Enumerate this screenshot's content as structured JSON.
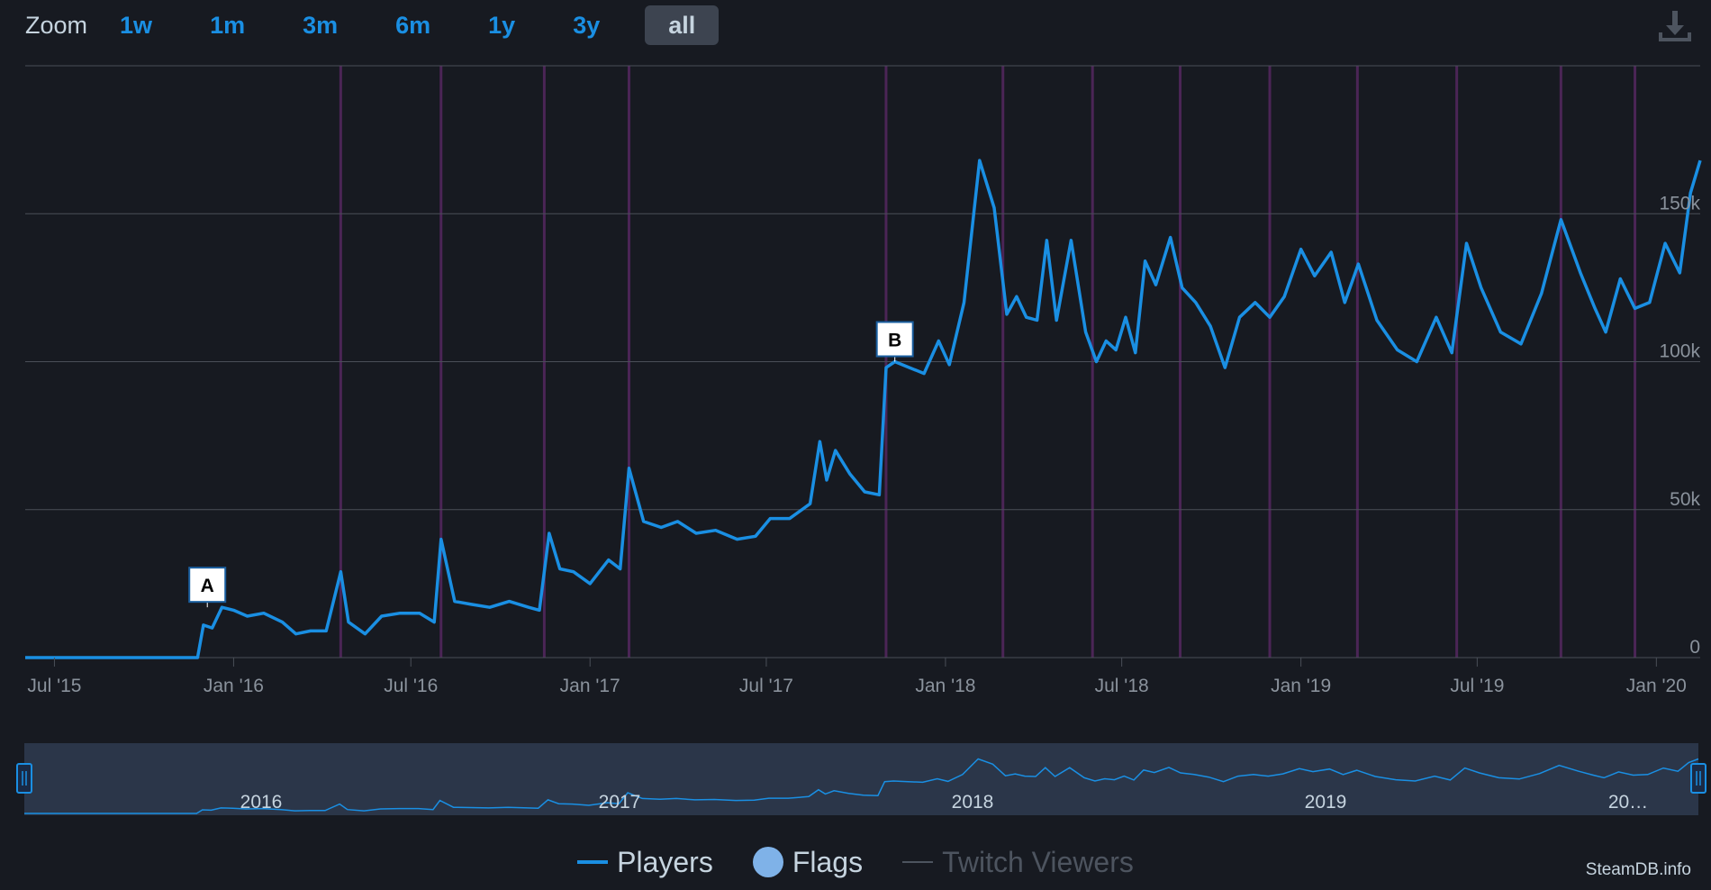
{
  "zoom": {
    "label": "Zoom",
    "buttons": [
      "1w",
      "1m",
      "3m",
      "6m",
      "1y",
      "3y",
      "all"
    ],
    "active": "all"
  },
  "legend": {
    "players": "Players",
    "flags": "Flags",
    "twitch": "Twitch Viewers"
  },
  "credit": "SteamDB.info",
  "colors": {
    "background": "#171a21",
    "series": "#1a8fe3",
    "event_lines": "#4b2556",
    "grid": "#4a4f58",
    "text": "#c6d4df"
  },
  "icons": {
    "download": "download-icon"
  },
  "chart_data": {
    "type": "line",
    "xlabel": "",
    "ylabel": "",
    "xlim": [
      "2015-06-01",
      "2020-02-15"
    ],
    "ylim": [
      0,
      200000
    ],
    "y_ticks": [
      0,
      50000,
      100000,
      150000
    ],
    "y_tick_labels": [
      "0",
      "50k",
      "100k",
      "150k"
    ],
    "x_ticks": [
      "2015-07-01",
      "2016-01-01",
      "2016-07-01",
      "2017-01-01",
      "2017-07-01",
      "2018-01-01",
      "2018-07-01",
      "2019-01-01",
      "2019-07-01",
      "2020-01-01"
    ],
    "x_tick_labels": [
      "Jul '15",
      "Jan '16",
      "Jul '16",
      "Jan '17",
      "Jul '17",
      "Jan '18",
      "Jul '18",
      "Jan '19",
      "Jul '19",
      "Jan '20"
    ],
    "grid": true,
    "legend_position": "bottom-center",
    "event_lines": [
      "2016-04-20",
      "2016-08-01",
      "2016-11-15",
      "2017-02-10",
      "2017-11-01",
      "2018-03-01",
      "2018-06-01",
      "2018-08-30",
      "2018-11-30",
      "2019-02-28",
      "2019-06-10",
      "2019-09-25",
      "2019-12-10"
    ],
    "flags": [
      {
        "label": "A",
        "x": "2015-12-05",
        "y": 17000
      },
      {
        "label": "B",
        "x": "2017-11-10",
        "y": 100000
      }
    ],
    "series": [
      {
        "name": "Players",
        "x": [
          "2015-06-01",
          "2015-06-20",
          "2015-07-15",
          "2015-08-10",
          "2015-09-01",
          "2015-09-20",
          "2015-10-15",
          "2015-11-10",
          "2015-11-25",
          "2015-12-01",
          "2015-12-10",
          "2015-12-20",
          "2016-01-01",
          "2016-01-15",
          "2016-02-01",
          "2016-02-20",
          "2016-03-05",
          "2016-03-20",
          "2016-04-05",
          "2016-04-20",
          "2016-04-28",
          "2016-05-15",
          "2016-06-01",
          "2016-06-20",
          "2016-07-10",
          "2016-07-25",
          "2016-08-01",
          "2016-08-15",
          "2016-09-01",
          "2016-09-20",
          "2016-10-10",
          "2016-10-30",
          "2016-11-10",
          "2016-11-20",
          "2016-12-01",
          "2016-12-15",
          "2017-01-01",
          "2017-01-20",
          "2017-02-01",
          "2017-02-10",
          "2017-02-25",
          "2017-03-15",
          "2017-04-01",
          "2017-04-20",
          "2017-05-10",
          "2017-06-01",
          "2017-06-20",
          "2017-07-05",
          "2017-07-25",
          "2017-08-15",
          "2017-08-25",
          "2017-09-01",
          "2017-09-10",
          "2017-09-25",
          "2017-10-10",
          "2017-10-25",
          "2017-11-01",
          "2017-11-10",
          "2017-11-25",
          "2017-12-10",
          "2017-12-25",
          "2018-01-05",
          "2018-01-20",
          "2018-02-05",
          "2018-02-20",
          "2018-03-05",
          "2018-03-15",
          "2018-03-25",
          "2018-04-05",
          "2018-04-15",
          "2018-04-25",
          "2018-05-10",
          "2018-05-25",
          "2018-06-05",
          "2018-06-15",
          "2018-06-25",
          "2018-07-05",
          "2018-07-15",
          "2018-07-25",
          "2018-08-05",
          "2018-08-20",
          "2018-09-01",
          "2018-09-15",
          "2018-09-30",
          "2018-10-15",
          "2018-10-30",
          "2018-11-15",
          "2018-11-30",
          "2018-12-15",
          "2019-01-01",
          "2019-01-15",
          "2019-02-01",
          "2019-02-15",
          "2019-03-01",
          "2019-03-20",
          "2019-04-10",
          "2019-04-30",
          "2019-05-20",
          "2019-06-05",
          "2019-06-20",
          "2019-07-05",
          "2019-07-25",
          "2019-08-15",
          "2019-09-05",
          "2019-09-25",
          "2019-10-15",
          "2019-10-30",
          "2019-11-10",
          "2019-11-25",
          "2019-12-10",
          "2019-12-25",
          "2020-01-10",
          "2020-01-25",
          "2020-02-05",
          "2020-02-15"
        ],
        "values": [
          0,
          0,
          0,
          0,
          0,
          0,
          0,
          0,
          0,
          11000,
          10000,
          17000,
          16000,
          14000,
          15000,
          12000,
          8000,
          9000,
          9000,
          29000,
          12000,
          8000,
          14000,
          15000,
          15000,
          12000,
          40000,
          19000,
          18000,
          17000,
          19000,
          17000,
          16000,
          42000,
          30000,
          29000,
          25000,
          33000,
          30000,
          64000,
          46000,
          44000,
          46000,
          42000,
          43000,
          40000,
          41000,
          47000,
          47000,
          52000,
          73000,
          60000,
          70000,
          62000,
          56000,
          55000,
          98000,
          100000,
          98000,
          96000,
          107000,
          99000,
          120000,
          168000,
          152000,
          116000,
          122000,
          115000,
          114000,
          141000,
          114000,
          141000,
          110000,
          100000,
          107000,
          104000,
          115000,
          103000,
          134000,
          126000,
          142000,
          125000,
          120000,
          112000,
          98000,
          115000,
          120000,
          115000,
          122000,
          138000,
          129000,
          137000,
          120000,
          133000,
          114000,
          104000,
          100000,
          115000,
          103000,
          140000,
          125000,
          110000,
          106000,
          123000,
          148000,
          130000,
          118000,
          110000,
          128000,
          118000,
          120000,
          140000,
          130000,
          157000,
          168000
        ]
      }
    ],
    "navigator": {
      "tick_labels": [
        "2016",
        "2017",
        "2018",
        "2019",
        "20…"
      ]
    }
  }
}
